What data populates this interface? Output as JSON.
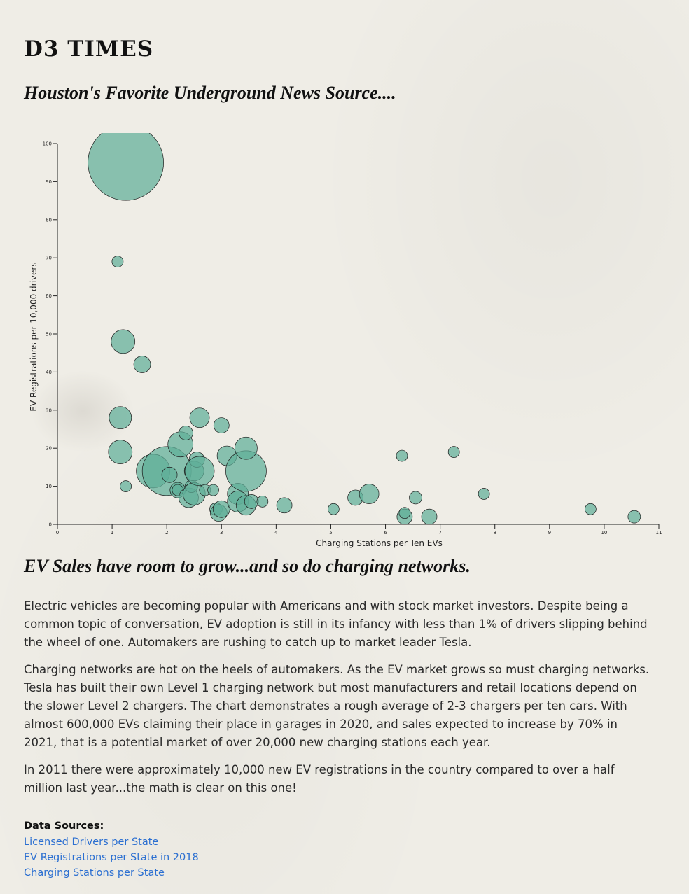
{
  "header": {
    "brand": "D3 TIMES",
    "tagline": "Houston's Favorite Underground News Source...."
  },
  "article": {
    "heading": "EV Sales have room to grow...and so do charging networks.",
    "paragraphs": [
      "Electric vehicles are becoming popular with Americans and with stock market investors. Despite being a common topic of conversation, EV adoption is still in its infancy with less than 1% of drivers slipping behind the wheel of one. Automakers are rushing to catch up to market leader Tesla.",
      "Charging networks are hot on the heels of automakers. As the EV market grows so must charging networks. Tesla has built their own Level 1 charging network but most manufacturers and retail locations depend on the slower Level 2 chargers. The chart demonstrates a rough average of 2-3 chargers per ten cars. With almost 600,000 EVs claiming their place in garages in 2020, and sales expected to increase by 70% in 2021, that is a potential market of over 20,000 new charging stations each year.",
      "In 2011 there were approximately 10,000 new EV registrations in the country compared to over a half million last year...the math is clear on this one!"
    ]
  },
  "sources": {
    "label": "Data Sources:",
    "links": [
      "Licensed Drivers per State",
      "EV Registrations per State in 2018",
      "Charging Stations per State"
    ]
  },
  "colors": {
    "bubble_fill": "#5fae99",
    "bubble_stroke": "#1b1b1b",
    "link": "#2b6fd1"
  },
  "chart_data": {
    "type": "scatter",
    "xlabel": "Charging Stations per Ten EVs",
    "ylabel": "EV Registrations per 10,000 drivers",
    "xlim": [
      0,
      11
    ],
    "ylim": [
      0,
      100
    ],
    "xticks": [
      0,
      1,
      2,
      3,
      4,
      5,
      6,
      7,
      8,
      9,
      10,
      11
    ],
    "yticks": [
      0,
      10,
      20,
      30,
      40,
      50,
      60,
      70,
      80,
      90,
      100
    ],
    "grid": false,
    "legend": "none",
    "size_encoding": "bubble radius (relative, unlabeled)",
    "points": [
      {
        "x": 1.25,
        "y": 95,
        "r": 54
      },
      {
        "x": 1.1,
        "y": 69,
        "r": 8
      },
      {
        "x": 1.2,
        "y": 48,
        "r": 17
      },
      {
        "x": 1.55,
        "y": 42,
        "r": 12
      },
      {
        "x": 1.15,
        "y": 28,
        "r": 16
      },
      {
        "x": 1.15,
        "y": 19,
        "r": 17
      },
      {
        "x": 1.25,
        "y": 10,
        "r": 8
      },
      {
        "x": 1.75,
        "y": 14,
        "r": 24
      },
      {
        "x": 2.0,
        "y": 14,
        "r": 35
      },
      {
        "x": 2.05,
        "y": 13,
        "r": 11
      },
      {
        "x": 2.2,
        "y": 9,
        "r": 11
      },
      {
        "x": 2.25,
        "y": 21,
        "r": 18
      },
      {
        "x": 2.35,
        "y": 24,
        "r": 10
      },
      {
        "x": 2.2,
        "y": 9,
        "r": 8
      },
      {
        "x": 2.4,
        "y": 7,
        "r": 14
      },
      {
        "x": 2.45,
        "y": 10,
        "r": 9
      },
      {
        "x": 2.5,
        "y": 8,
        "r": 16
      },
      {
        "x": 2.5,
        "y": 14,
        "r": 14
      },
      {
        "x": 2.55,
        "y": 17,
        "r": 11
      },
      {
        "x": 2.6,
        "y": 14,
        "r": 21
      },
      {
        "x": 2.7,
        "y": 9,
        "r": 8
      },
      {
        "x": 2.85,
        "y": 9,
        "r": 8
      },
      {
        "x": 2.6,
        "y": 28,
        "r": 14
      },
      {
        "x": 3.0,
        "y": 26,
        "r": 11
      },
      {
        "x": 2.9,
        "y": 4,
        "r": 9
      },
      {
        "x": 2.95,
        "y": 3,
        "r": 12
      },
      {
        "x": 3.0,
        "y": 4,
        "r": 12
      },
      {
        "x": 3.1,
        "y": 18,
        "r": 14
      },
      {
        "x": 3.3,
        "y": 8,
        "r": 15
      },
      {
        "x": 3.3,
        "y": 6,
        "r": 15
      },
      {
        "x": 3.45,
        "y": 14,
        "r": 29
      },
      {
        "x": 3.45,
        "y": 20,
        "r": 16
      },
      {
        "x": 3.45,
        "y": 5,
        "r": 14
      },
      {
        "x": 3.55,
        "y": 6,
        "r": 10
      },
      {
        "x": 3.75,
        "y": 6,
        "r": 8
      },
      {
        "x": 4.15,
        "y": 5,
        "r": 11
      },
      {
        "x": 5.05,
        "y": 4,
        "r": 8
      },
      {
        "x": 5.45,
        "y": 7,
        "r": 11
      },
      {
        "x": 5.7,
        "y": 8,
        "r": 14
      },
      {
        "x": 6.3,
        "y": 18,
        "r": 8
      },
      {
        "x": 6.35,
        "y": 2,
        "r": 11
      },
      {
        "x": 6.35,
        "y": 3,
        "r": 8
      },
      {
        "x": 6.55,
        "y": 7,
        "r": 9
      },
      {
        "x": 6.8,
        "y": 2,
        "r": 11
      },
      {
        "x": 7.25,
        "y": 19,
        "r": 8
      },
      {
        "x": 7.8,
        "y": 8,
        "r": 8
      },
      {
        "x": 9.75,
        "y": 4,
        "r": 8
      },
      {
        "x": 10.55,
        "y": 2,
        "r": 9
      }
    ]
  }
}
